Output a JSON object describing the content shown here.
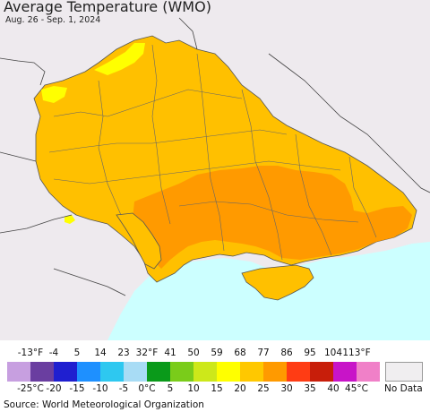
{
  "title": "Average Temperature (WMO)",
  "date_range": "Aug. 26 - Sep. 1, 2024",
  "source": "Source: World Meteorological Organization",
  "legend": {
    "fahrenheit_ticks": [
      "-13°F",
      "-4",
      "5",
      "14",
      "23",
      "32°F",
      "41",
      "50",
      "59",
      "68",
      "77",
      "86",
      "95",
      "104",
      "113°F"
    ],
    "celsius_ticks": [
      "-25°C",
      "-20",
      "-15",
      "-10",
      "-5",
      "0°C",
      "5",
      "10",
      "15",
      "20",
      "25",
      "30",
      "35",
      "40",
      "45°C"
    ],
    "colors": [
      "#c79fe0",
      "#6a3ea0",
      "#1f1fd0",
      "#1e90ff",
      "#2ec8f0",
      "#a8dcf5",
      "#0a9a1a",
      "#7acc1a",
      "#cde81a",
      "#ffff00",
      "#ffc800",
      "#ff9a00",
      "#ff3c14",
      "#c81e0a",
      "#c814c8",
      "#f080c8"
    ],
    "no_data_label": "No Data",
    "no_data_color": "#f0eef0"
  },
  "map": {
    "sea_color": "#ccffff",
    "land_outside_color": "#eeeaee",
    "dominant_temperature_class": "20-25°C",
    "hot_region_class": "25-30°C",
    "cool_spots_class": "15-20°C"
  }
}
